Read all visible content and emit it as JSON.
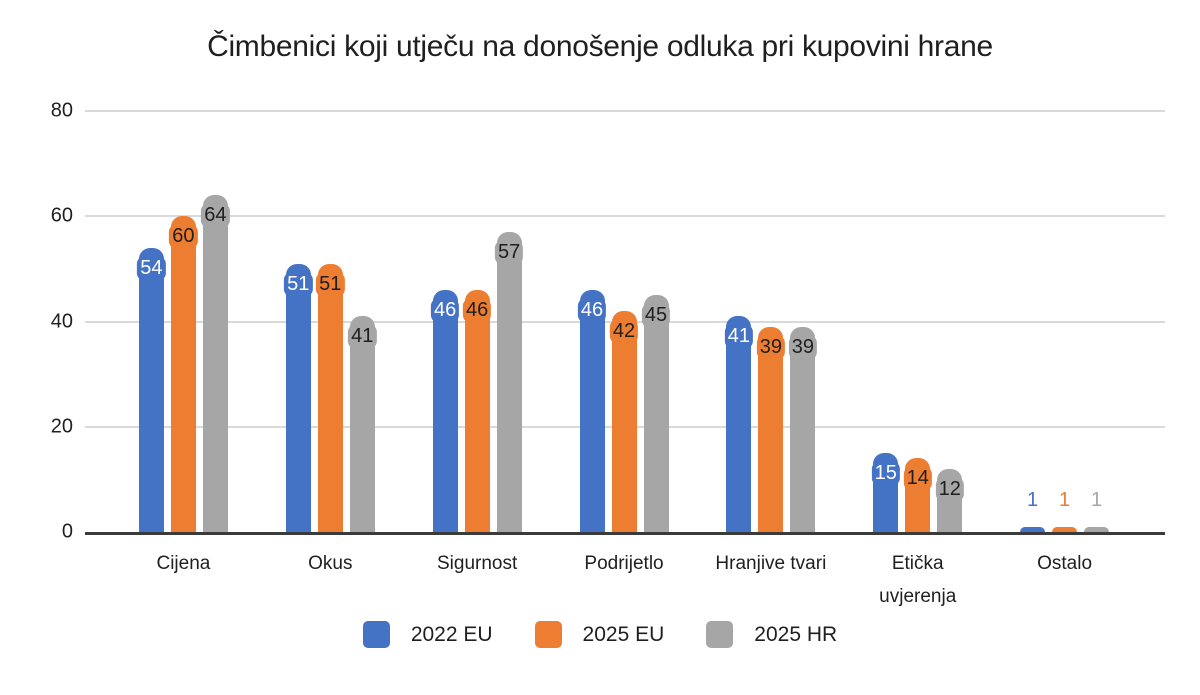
{
  "chart_data": {
    "type": "bar",
    "title": "Čimbenici koji utječu na donošenje odluka pri kupovini hrane",
    "categories": [
      "Cijena",
      "Okus",
      "Sigurnost",
      "Podrijetlo",
      "Hranjive tvari",
      "Etička uvjerenja",
      "Ostalo"
    ],
    "series": [
      {
        "name": "2022 EU",
        "color": "#4472C4",
        "label_text_color": "#ffffff",
        "values": [
          54,
          51,
          46,
          46,
          41,
          15,
          1
        ]
      },
      {
        "name": "2025 EU",
        "color": "#ED7D31",
        "label_text_color": "#1f1f1f",
        "values": [
          60,
          51,
          46,
          42,
          39,
          14,
          1
        ]
      },
      {
        "name": "2025 HR",
        "color": "#A6A6A6",
        "label_text_color": "#1f1f1f",
        "values": [
          64,
          41,
          57,
          45,
          39,
          12,
          1
        ]
      }
    ],
    "y_axis": {
      "min": 0,
      "max": 80,
      "ticks": [
        0,
        20,
        40,
        60,
        80
      ]
    },
    "grid": true,
    "legend_position": "bottom",
    "data_labels": "inside-end, outside when bar too short",
    "colors": {
      "gridline": "#d9d9d9",
      "axis_line": "#3b3b3b",
      "text": "#1f1f1f",
      "background": "#ffffff"
    }
  }
}
